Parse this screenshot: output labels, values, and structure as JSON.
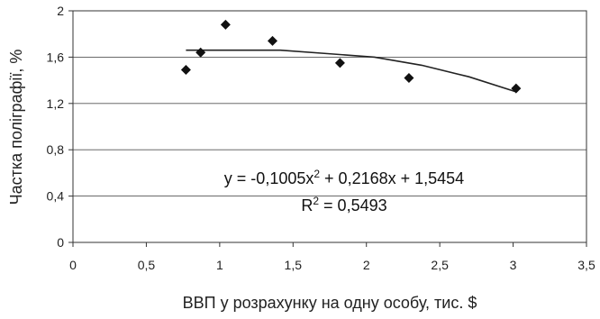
{
  "chart_data": {
    "type": "scatter",
    "xlabel": "ВВП у розрахунку на одну особу, тис. $",
    "ylabel": "Частка поліграфії, %",
    "xlim": [
      0,
      3.5
    ],
    "ylim": [
      0,
      2
    ],
    "x_ticks": [
      "0",
      "0,5",
      "1",
      "1,5",
      "2",
      "2,5",
      "3",
      "3,5"
    ],
    "y_ticks": [
      "0",
      "0,4",
      "0,8",
      "1,2",
      "1,6",
      "2"
    ],
    "grid": "horizontal",
    "points": [
      {
        "x": 0.77,
        "y": 1.49
      },
      {
        "x": 0.87,
        "y": 1.64
      },
      {
        "x": 1.04,
        "y": 1.88
      },
      {
        "x": 1.36,
        "y": 1.74
      },
      {
        "x": 1.82,
        "y": 1.55
      },
      {
        "x": 2.29,
        "y": 1.42
      },
      {
        "x": 3.02,
        "y": 1.33
      }
    ],
    "trendline": {
      "type": "polynomial",
      "x_range": [
        0.77,
        3.02
      ],
      "y_values": [
        1.66,
        1.66,
        1.66,
        1.63,
        1.6,
        1.53,
        1.43,
        1.3
      ]
    },
    "equation": {
      "line1_prefix": "y = -0,1005x",
      "line1_sup": "2",
      "line1_suffix": " + 0,2168x + 1,5454",
      "line2_prefix": "R",
      "line2_sup": "2",
      "line2_suffix": " = 0,5493"
    }
  }
}
